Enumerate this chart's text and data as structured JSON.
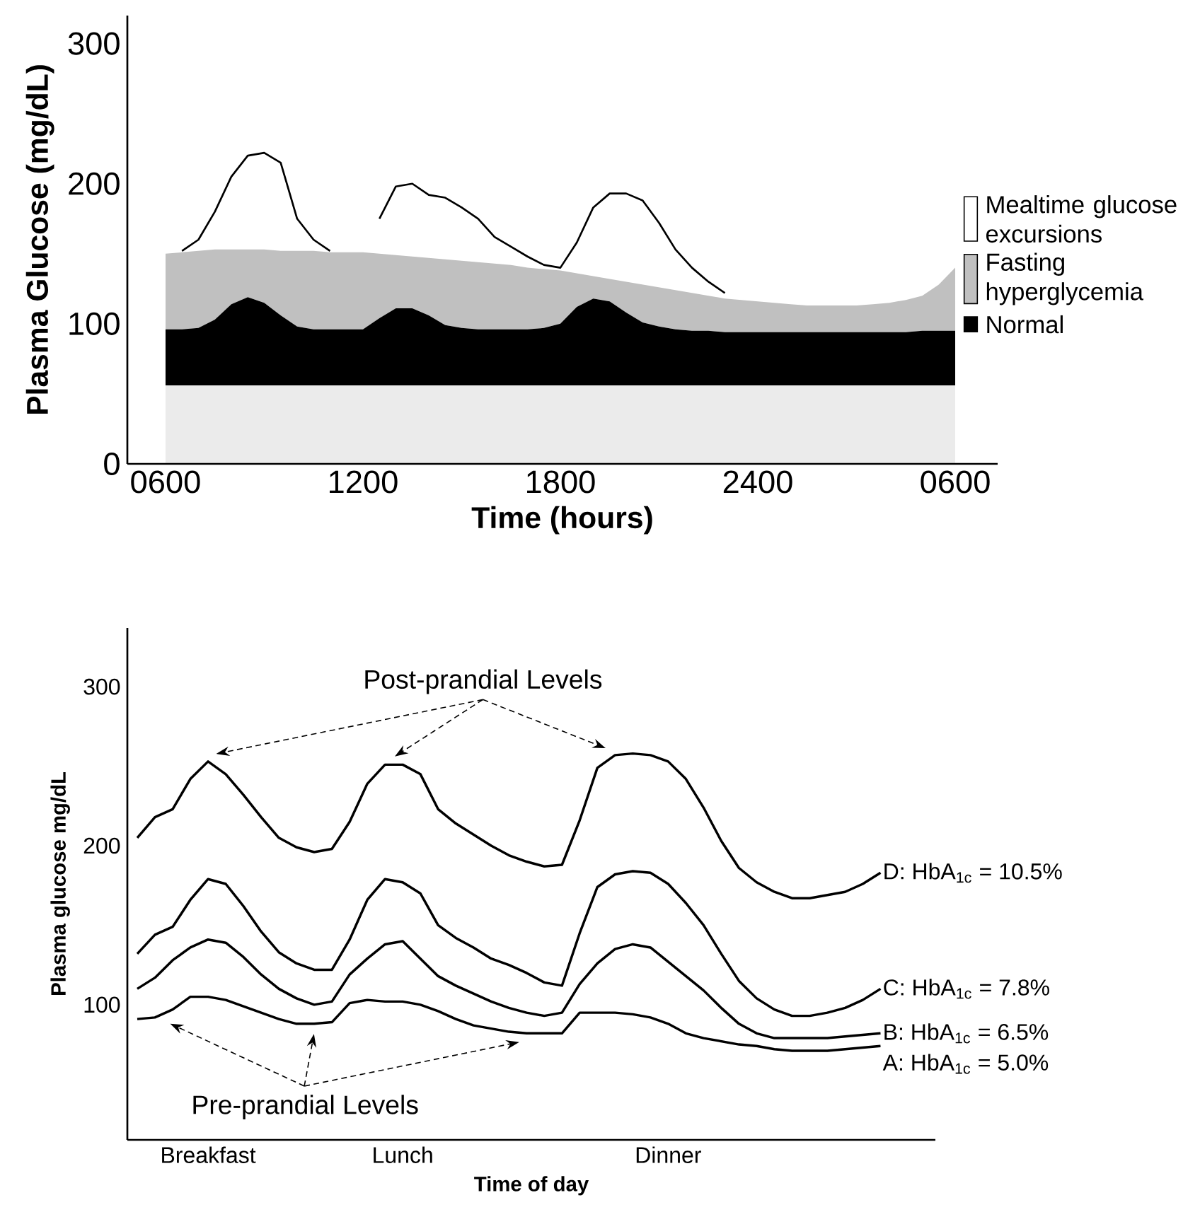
{
  "chart_data": [
    {
      "type": "area",
      "stacked": true,
      "xlabel": "Time (hours)",
      "ylabel": "Plasma Glucose (mg/dL)",
      "legend": "right",
      "categories": [
        "0600",
        null,
        null,
        null,
        null,
        null,
        null,
        null,
        null,
        null,
        null,
        null,
        "1200",
        null,
        null,
        null,
        null,
        null,
        null,
        null,
        null,
        null,
        null,
        null,
        "1800",
        null,
        null,
        null,
        null,
        null,
        null,
        null,
        null,
        null,
        null,
        null,
        "2400",
        null,
        null,
        null,
        null,
        null,
        null,
        null,
        null,
        null,
        null,
        null,
        "0600"
      ],
      "ylim": [
        0,
        320
      ],
      "yticks": [
        0,
        100,
        200,
        300
      ],
      "series": [
        {
          "color": "#ebebeb",
          "values": [
            56,
            56,
            56,
            56,
            56,
            56,
            56,
            56,
            56,
            56,
            56,
            56,
            56,
            56,
            56,
            56,
            56,
            56,
            56,
            56,
            56,
            56,
            56,
            56,
            56,
            56,
            56,
            56,
            56,
            56,
            56,
            56,
            56,
            56,
            56,
            56,
            56,
            56,
            56,
            56,
            56,
            56,
            56,
            56,
            56,
            56,
            56,
            56,
            56
          ]
        },
        {
          "name": "Normal",
          "color": "#000000",
          "values": [
            40,
            40,
            41,
            47,
            58,
            63,
            59,
            50,
            42,
            40,
            40,
            40,
            40,
            48,
            55,
            55,
            50,
            43,
            41,
            40,
            40,
            40,
            40,
            41,
            44,
            56,
            62,
            60,
            52,
            45,
            42,
            40,
            39,
            39,
            38,
            38,
            38,
            38,
            38,
            38,
            38,
            38,
            38,
            38,
            38,
            38,
            39,
            39,
            39
          ]
        },
        {
          "name": "Fasting hyperglycemia",
          "color": "#c0c0c0",
          "values": [
            54,
            55,
            55,
            50,
            39,
            34,
            38,
            46,
            54,
            56,
            55,
            55,
            55,
            46,
            38,
            37,
            41,
            47,
            48,
            48,
            47,
            46,
            44,
            42,
            38,
            24,
            16,
            16,
            22,
            27,
            28,
            28,
            27,
            25,
            24,
            23,
            22,
            21,
            20,
            19,
            19,
            19,
            19,
            20,
            21,
            23,
            25,
            33,
            45
          ]
        },
        {
          "name": "Mealtime glucose excursions",
          "color": "#ffffff",
          "values": [
            null,
            1,
            8,
            27,
            52,
            67,
            69,
            63,
            23,
            8,
            1,
            null,
            null,
            25,
            49,
            52,
            45,
            44,
            38,
            31,
            19,
            13,
            8,
            3,
            2,
            22,
            49,
            61,
            63,
            60,
            46,
            29,
            18,
            10,
            4,
            null,
            null,
            null,
            null,
            null,
            null,
            null,
            null,
            null,
            null,
            null,
            null,
            null,
            null
          ]
        }
      ]
    },
    {
      "type": "line",
      "xlabel": "Time of day",
      "ylabel": "Plasma glucose mg/dL",
      "categories": [
        null,
        null,
        null,
        null,
        "Breakfast",
        null,
        null,
        null,
        null,
        null,
        null,
        null,
        null,
        null,
        null,
        "Lunch",
        null,
        null,
        null,
        null,
        null,
        null,
        null,
        null,
        null,
        null,
        null,
        null,
        null,
        null,
        "Dinner",
        null,
        null,
        null,
        null,
        null,
        null,
        null,
        null,
        null,
        null,
        null,
        null
      ],
      "ylim": [
        15,
        337
      ],
      "yticks": [
        100,
        200,
        300
      ],
      "annotations": [
        "Post-prandial Levels",
        "Pre-prandial Levels"
      ],
      "series": [
        {
          "name": "D: HbA$_{1c}$ = 10.5%",
          "color": "#000000",
          "values": [
            205,
            218,
            223,
            242,
            253,
            245,
            232,
            218,
            205,
            199,
            196,
            198,
            215,
            239,
            251,
            251,
            245,
            223,
            214,
            207,
            200,
            194,
            190,
            187,
            188,
            216,
            249,
            257,
            258,
            257,
            253,
            242,
            224,
            203,
            186,
            177,
            171,
            167,
            167,
            169,
            171,
            176,
            183
          ]
        },
        {
          "name": "C: HbA$_{1c}$ = 7.8%",
          "color": "#000000",
          "values": [
            132,
            144,
            149,
            166,
            179,
            176,
            162,
            146,
            133,
            126,
            122,
            122,
            141,
            166,
            179,
            177,
            170,
            150,
            142,
            136,
            129,
            125,
            120,
            114,
            112,
            145,
            174,
            182,
            184,
            183,
            176,
            164,
            150,
            132,
            115,
            104,
            97,
            93,
            93,
            95,
            98,
            103,
            110
          ]
        },
        {
          "name": "B: HbA$_{1c}$ = 6.5%",
          "color": "#000000",
          "values": [
            110,
            117,
            128,
            136,
            141,
            139,
            130,
            119,
            110,
            104,
            100,
            102,
            119,
            129,
            138,
            140,
            129,
            118,
            112,
            107,
            102,
            98,
            95,
            93,
            95,
            113,
            126,
            135,
            138,
            136,
            127,
            118,
            109,
            98,
            88,
            82,
            79,
            79,
            79,
            79,
            80,
            81,
            82
          ]
        },
        {
          "name": "A: HbA$_{1c}$ = 5.0%",
          "color": "#000000",
          "values": [
            91,
            92,
            97,
            105,
            105,
            103,
            99,
            95,
            91,
            88,
            88,
            89,
            101,
            103,
            102,
            102,
            100,
            96,
            91,
            87,
            85,
            83,
            82,
            82,
            82,
            95,
            95,
            95,
            94,
            92,
            88,
            82,
            79,
            77,
            75,
            74,
            72,
            71,
            71,
            71,
            72,
            73,
            74
          ]
        }
      ]
    }
  ]
}
